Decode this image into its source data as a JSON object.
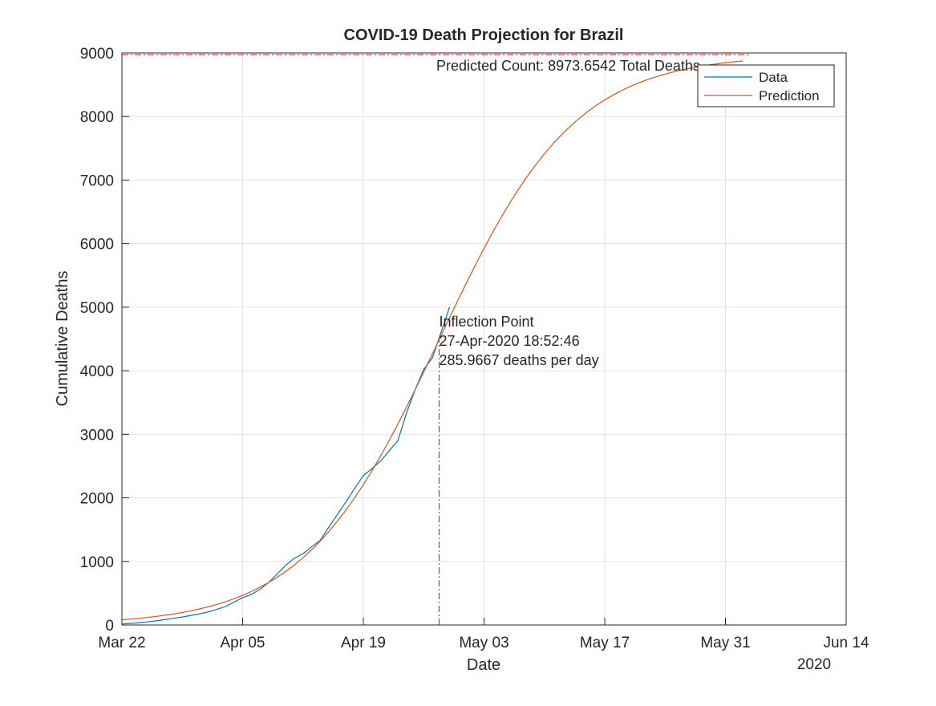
{
  "chart_data": {
    "type": "line",
    "title": "COVID-19 Death Projection for Brazil",
    "x_label": "Date",
    "y_label": "Cumulative Deaths",
    "x_year_label": "2020",
    "x": [
      "2020-03-22",
      "2020-03-23",
      "2020-03-24",
      "2020-03-25",
      "2020-03-26",
      "2020-03-27",
      "2020-03-28",
      "2020-03-29",
      "2020-03-30",
      "2020-03-31",
      "2020-04-01",
      "2020-04-02",
      "2020-04-03",
      "2020-04-04",
      "2020-04-05",
      "2020-04-06",
      "2020-04-07",
      "2020-04-08",
      "2020-04-09",
      "2020-04-10",
      "2020-04-11",
      "2020-04-12",
      "2020-04-13",
      "2020-04-14",
      "2020-04-15",
      "2020-04-16",
      "2020-04-17",
      "2020-04-18",
      "2020-04-19",
      "2020-04-20",
      "2020-04-21",
      "2020-04-22",
      "2020-04-23",
      "2020-04-24",
      "2020-04-25",
      "2020-04-26",
      "2020-04-27",
      "2020-04-28",
      "2020-04-29",
      "2020-04-30",
      "2020-05-01",
      "2020-05-02",
      "2020-05-03",
      "2020-05-04",
      "2020-05-05",
      "2020-05-06",
      "2020-05-07",
      "2020-05-08",
      "2020-05-09",
      "2020-05-10",
      "2020-05-11",
      "2020-05-12",
      "2020-05-13",
      "2020-05-14",
      "2020-05-15",
      "2020-05-16",
      "2020-05-17",
      "2020-05-18",
      "2020-05-19",
      "2020-05-20",
      "2020-05-21",
      "2020-05-22",
      "2020-05-23",
      "2020-05-24",
      "2020-05-25",
      "2020-05-26",
      "2020-05-27",
      "2020-05-28",
      "2020-05-29",
      "2020-05-30",
      "2020-05-31",
      "2020-06-01",
      "2020-06-02"
    ],
    "series": [
      {
        "name": "Data",
        "color": "#0072bd",
        "values": [
          15,
          25,
          35,
          50,
          65,
          85,
          105,
          125,
          150,
          175,
          205,
          245,
          290,
          360,
          430,
          480,
          560,
          667,
          800,
          940,
          1050,
          1120,
          1230,
          1330,
          1540,
          1740,
          1940,
          2150,
          2350,
          2460,
          2580,
          2740,
          2900,
          3330,
          3700,
          4020,
          4200,
          4600,
          5000,
          null,
          null,
          null,
          null,
          null,
          null,
          null,
          null,
          null,
          null,
          null,
          null,
          null,
          null,
          null,
          null,
          null,
          null,
          null,
          null,
          null,
          null,
          null,
          null,
          null,
          null,
          null,
          null,
          null,
          null,
          null,
          null,
          null,
          null
        ]
      },
      {
        "name": "Prediction",
        "color": "#d95319",
        "values": [
          81.7,
          92.6,
          105.1,
          119.2,
          135.2,
          153.2,
          173.7,
          196.8,
          222.9,
          252.4,
          285.6,
          323,
          365.2,
          412.6,
          465.7,
          525.4,
          592.3,
          666.7,
          749.7,
          842.2,
          944.7,
          1058,
          1183,
          1320,
          1470,
          1634,
          1811,
          2003,
          2208,
          2427,
          2659,
          2903,
          3160,
          3425,
          3699,
          3979,
          4263,
          4549,
          4834,
          5117,
          5394,
          5665,
          5926,
          6178,
          6417,
          6643,
          6856,
          7056,
          7241,
          7413,
          7570,
          7715,
          7846,
          7966,
          8075,
          8173,
          8261,
          8340,
          8411,
          8475,
          8532,
          8582,
          8627,
          8667,
          8703,
          8734,
          8762,
          8787,
          8809,
          8828,
          8845,
          8861,
          8874
        ]
      }
    ],
    "xlim": [
      "2020-03-22",
      "2020-06-14"
    ],
    "xticks": [
      {
        "value": "2020-03-22",
        "label": "Mar 22"
      },
      {
        "value": "2020-04-05",
        "label": "Apr 05"
      },
      {
        "value": "2020-04-19",
        "label": "Apr 19"
      },
      {
        "value": "2020-05-03",
        "label": "May 03"
      },
      {
        "value": "2020-05-17",
        "label": "May 17"
      },
      {
        "value": "2020-05-31",
        "label": "May 31"
      },
      {
        "value": "2020-06-14",
        "label": "Jun 14"
      }
    ],
    "ylim": [
      0,
      9000
    ],
    "yticks": [
      0,
      1000,
      2000,
      3000,
      4000,
      5000,
      6000,
      7000,
      8000,
      9000
    ],
    "grid": true,
    "legend_position": "northeast",
    "reference_color": "#ff0000",
    "predicted_total": {
      "y": 8973.6542,
      "label": "Predicted Count: 8973.6542 Total Deaths"
    },
    "inflection": {
      "x": "2020-04-27T18:52:46",
      "y": 4486.8,
      "labels": [
        "Inflection Point",
        "27-Apr-2020 18:52:46",
        "285.9667 deaths per day"
      ]
    }
  }
}
